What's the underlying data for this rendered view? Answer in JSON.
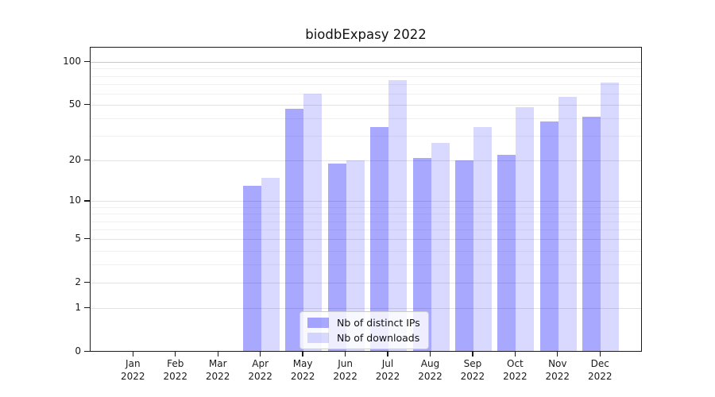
{
  "chart_data": {
    "type": "bar",
    "title": "biodbExpasy 2022",
    "xlabel": "",
    "ylabel": "",
    "categories": [
      "Jan 2022",
      "Feb 2022",
      "Mar 2022",
      "Apr 2022",
      "May 2022",
      "Jun 2022",
      "Jul 2022",
      "Aug 2022",
      "Sep 2022",
      "Oct 2022",
      "Nov 2022",
      "Dec 2022"
    ],
    "series": [
      {
        "name": "Nb of distinct IPs",
        "color": "#0000FF57",
        "values": [
          0,
          0,
          0,
          13,
          47,
          19,
          35,
          21,
          20,
          22,
          38,
          41
        ]
      },
      {
        "name": "Nb of downloads",
        "color": "#0000FF26",
        "values": [
          0,
          0,
          0,
          15,
          60,
          20,
          75,
          27,
          35,
          48,
          57,
          72
        ]
      }
    ],
    "y_axis": {
      "scale": "log10(1+v)",
      "ticks": [
        0,
        1,
        2,
        5,
        10,
        20,
        50,
        100
      ],
      "tick_labels": [
        "0",
        "1",
        "2",
        "5",
        "10",
        "20",
        "50",
        "100"
      ],
      "minor_gridlines": [
        3,
        4,
        6,
        7,
        8,
        9,
        30,
        40,
        60,
        70,
        80,
        90
      ],
      "ymax": 127
    },
    "legend": {
      "position": "lower-center",
      "entries": [
        "Nb of distinct IPs",
        "Nb of downloads"
      ]
    },
    "grid": true
  }
}
